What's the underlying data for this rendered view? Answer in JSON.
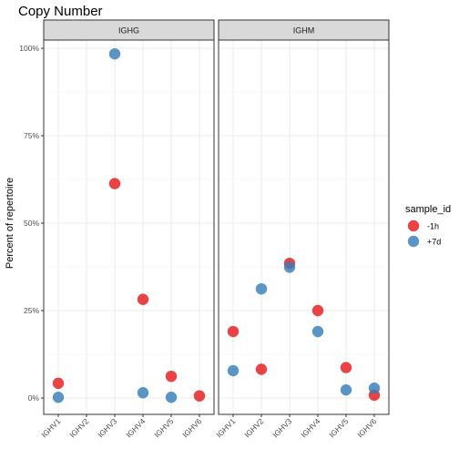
{
  "chart_data": {
    "type": "scatter",
    "title": "Copy Number",
    "ylabel": "Percent of repertoire",
    "xlabel": "",
    "ylim": [
      0,
      100
    ],
    "y_ticks": [
      {
        "value": 0,
        "label": "0%"
      },
      {
        "value": 25,
        "label": "25%"
      },
      {
        "value": 50,
        "label": "50%"
      },
      {
        "value": 75,
        "label": "75%"
      },
      {
        "value": 100,
        "label": "100%"
      }
    ],
    "categories": [
      "IGHV1",
      "IGHV2",
      "IGHV3",
      "IGHV4",
      "IGHV5",
      "IGHV6"
    ],
    "legend": {
      "title": "sample_id",
      "position": "right",
      "items": [
        {
          "name": "-1h",
          "color": "#E41A1C"
        },
        {
          "name": "+7d",
          "color": "#377EB8"
        }
      ]
    },
    "panels": [
      {
        "strip": "IGHG",
        "categories": [
          "IGHV1",
          "IGHV2",
          "IGHV3",
          "IGHV4",
          "IGHV5",
          "IGHV6"
        ],
        "series": [
          {
            "name": "-1h",
            "color": "#E41A1C",
            "points": [
              {
                "x": "IGHV1",
                "y": 4.2
              },
              {
                "x": "IGHV3",
                "y": 61.3
              },
              {
                "x": "IGHV4",
                "y": 28.2
              },
              {
                "x": "IGHV5",
                "y": 6.2
              },
              {
                "x": "IGHV6",
                "y": 0.6
              }
            ]
          },
          {
            "name": "+7d",
            "color": "#377EB8",
            "points": [
              {
                "x": "IGHV1",
                "y": 0.2
              },
              {
                "x": "IGHV3",
                "y": 98.4
              },
              {
                "x": "IGHV4",
                "y": 1.5
              },
              {
                "x": "IGHV5",
                "y": 0.2
              }
            ]
          }
        ]
      },
      {
        "strip": "IGHM",
        "categories": [
          "IGHV1",
          "IGHV2",
          "IGHV3",
          "IGHV4",
          "IGHV5",
          "IGHV6"
        ],
        "series": [
          {
            "name": "-1h",
            "color": "#E41A1C",
            "points": [
              {
                "x": "IGHV1",
                "y": 19.0
              },
              {
                "x": "IGHV2",
                "y": 8.2
              },
              {
                "x": "IGHV3",
                "y": 38.5
              },
              {
                "x": "IGHV4",
                "y": 25.0
              },
              {
                "x": "IGHV5",
                "y": 8.7
              },
              {
                "x": "IGHV6",
                "y": 0.8
              }
            ]
          },
          {
            "name": "+7d",
            "color": "#377EB8",
            "points": [
              {
                "x": "IGHV1",
                "y": 7.8
              },
              {
                "x": "IGHV2",
                "y": 31.2
              },
              {
                "x": "IGHV3",
                "y": 37.4
              },
              {
                "x": "IGHV4",
                "y": 19.0
              },
              {
                "x": "IGHV5",
                "y": 2.3
              },
              {
                "x": "IGHV6",
                "y": 2.8
              }
            ]
          }
        ]
      }
    ],
    "grid": true,
    "panel_background": "#FFFFFF",
    "strip_background": "#D9D9D9",
    "grid_color": "#EBEBEB"
  }
}
